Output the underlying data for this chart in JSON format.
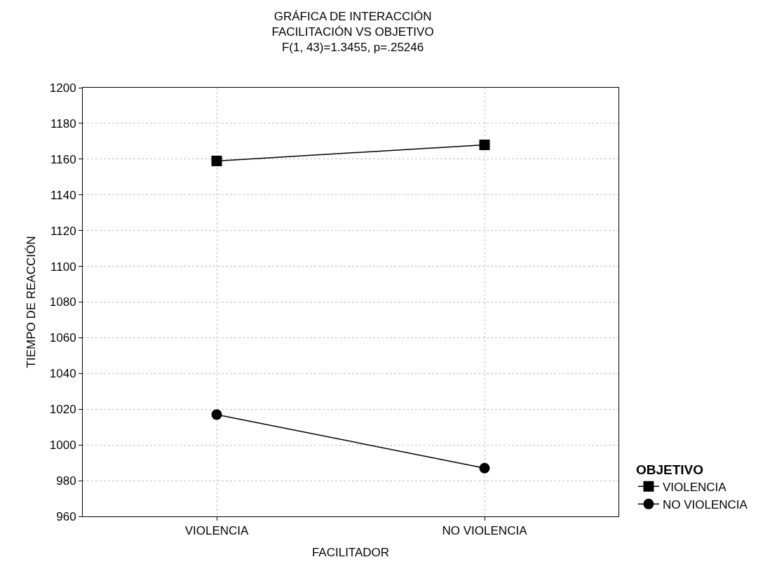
{
  "chart_data": {
    "type": "line",
    "title": "GRÁFICA DE INTERACCIÓN\nFACILITACIÓN VS OBJETIVO",
    "subtitle": "F(1, 43)=1.3455, p=.25246",
    "xlabel": "FACILITADOR",
    "ylabel": "TIEMPO DE REACCIÓN",
    "legend_title": "OBJETIVO",
    "categories": [
      "VIOLENCIA",
      "NO VIOLENCIA"
    ],
    "series": [
      {
        "name": "VIOLENCIA",
        "color": "#000000",
        "marker": "square",
        "values": [
          1159,
          1168
        ]
      },
      {
        "name": "NO VIOLENCIA",
        "color": "#000000",
        "marker": "circle",
        "values": [
          1017,
          987
        ]
      }
    ],
    "ylim": [
      960,
      1200
    ],
    "yticks": [
      960,
      980,
      1000,
      1020,
      1040,
      1060,
      1080,
      1100,
      1120,
      1140,
      1160,
      1180,
      1200
    ],
    "grid": true,
    "legend": "bottom right",
    "line_style": "solid"
  }
}
